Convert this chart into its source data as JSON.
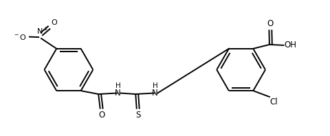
{
  "bg_color": "#ffffff",
  "line_color": "#000000",
  "line_width": 1.4,
  "figsize": [
    4.8,
    1.98
  ],
  "dpi": 100,
  "xlim": [
    0,
    9.6
  ],
  "ylim": [
    0.2,
    4.2
  ],
  "r": 0.72
}
